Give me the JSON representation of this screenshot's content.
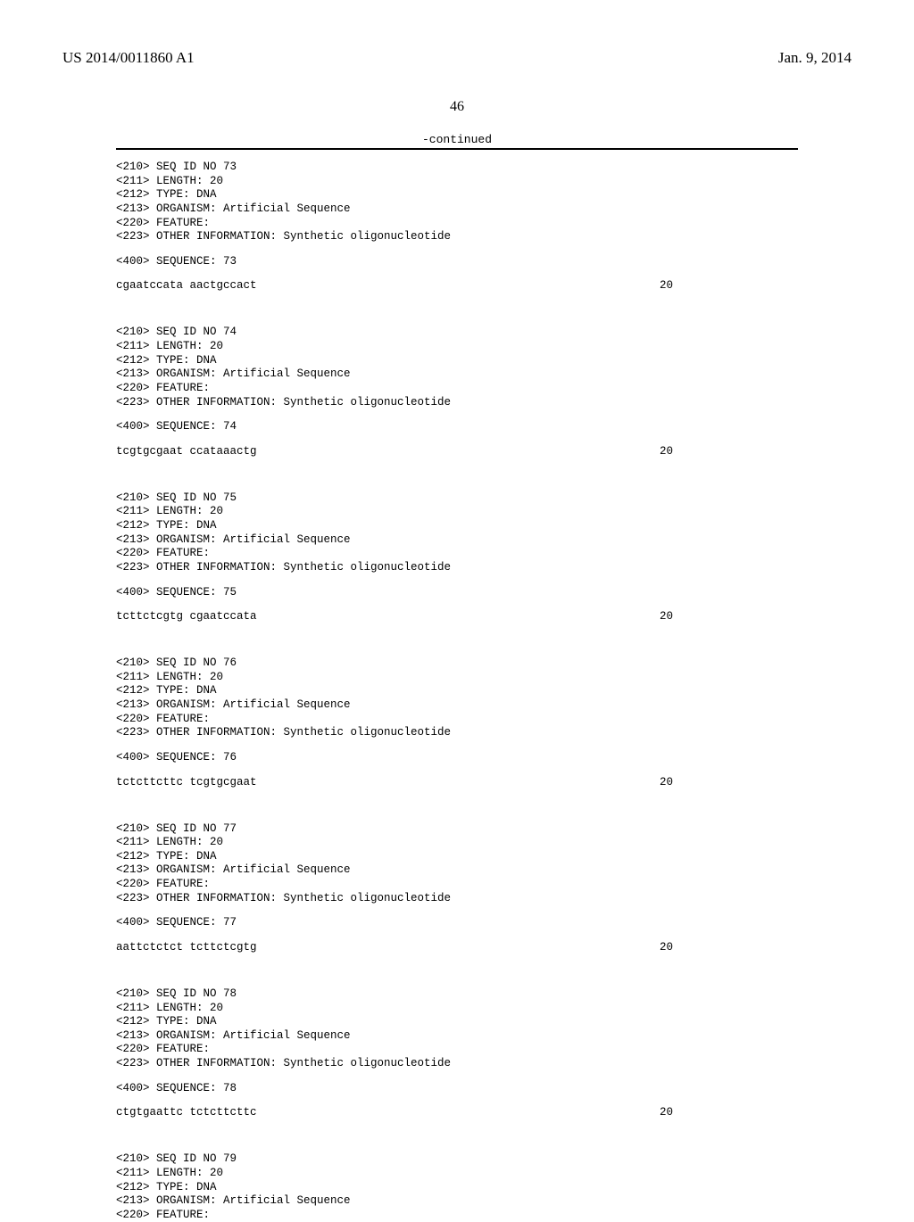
{
  "header": {
    "publication_number": "US 2014/0011860 A1",
    "publication_date": "Jan. 9, 2014"
  },
  "page_number": "46",
  "continued_label": "-continued",
  "blocks": [
    {
      "meta": [
        "<210> SEQ ID NO 73",
        "<211> LENGTH: 20",
        "<212> TYPE: DNA",
        "<213> ORGANISM: Artificial Sequence",
        "<220> FEATURE:",
        "<223> OTHER INFORMATION: Synthetic oligonucleotide"
      ],
      "seq_label": "<400> SEQUENCE: 73",
      "sequence": "cgaatccata aactgccact",
      "length": "20"
    },
    {
      "meta": [
        "<210> SEQ ID NO 74",
        "<211> LENGTH: 20",
        "<212> TYPE: DNA",
        "<213> ORGANISM: Artificial Sequence",
        "<220> FEATURE:",
        "<223> OTHER INFORMATION: Synthetic oligonucleotide"
      ],
      "seq_label": "<400> SEQUENCE: 74",
      "sequence": "tcgtgcgaat ccataaactg",
      "length": "20"
    },
    {
      "meta": [
        "<210> SEQ ID NO 75",
        "<211> LENGTH: 20",
        "<212> TYPE: DNA",
        "<213> ORGANISM: Artificial Sequence",
        "<220> FEATURE:",
        "<223> OTHER INFORMATION: Synthetic oligonucleotide"
      ],
      "seq_label": "<400> SEQUENCE: 75",
      "sequence": "tcttctcgtg cgaatccata",
      "length": "20"
    },
    {
      "meta": [
        "<210> SEQ ID NO 76",
        "<211> LENGTH: 20",
        "<212> TYPE: DNA",
        "<213> ORGANISM: Artificial Sequence",
        "<220> FEATURE:",
        "<223> OTHER INFORMATION: Synthetic oligonucleotide"
      ],
      "seq_label": "<400> SEQUENCE: 76",
      "sequence": "tctcttcttc tcgtgcgaat",
      "length": "20"
    },
    {
      "meta": [
        "<210> SEQ ID NO 77",
        "<211> LENGTH: 20",
        "<212> TYPE: DNA",
        "<213> ORGANISM: Artificial Sequence",
        "<220> FEATURE:",
        "<223> OTHER INFORMATION: Synthetic oligonucleotide"
      ],
      "seq_label": "<400> SEQUENCE: 77",
      "sequence": "aattctctct tcttctcgtg",
      "length": "20"
    },
    {
      "meta": [
        "<210> SEQ ID NO 78",
        "<211> LENGTH: 20",
        "<212> TYPE: DNA",
        "<213> ORGANISM: Artificial Sequence",
        "<220> FEATURE:",
        "<223> OTHER INFORMATION: Synthetic oligonucleotide"
      ],
      "seq_label": "<400> SEQUENCE: 78",
      "sequence": "ctgtgaattc tctcttcttc",
      "length": "20"
    },
    {
      "meta": [
        "<210> SEQ ID NO 79",
        "<211> LENGTH: 20",
        "<212> TYPE: DNA",
        "<213> ORGANISM: Artificial Sequence",
        "<220> FEATURE:"
      ],
      "seq_label": null,
      "sequence": null,
      "length": null
    }
  ]
}
